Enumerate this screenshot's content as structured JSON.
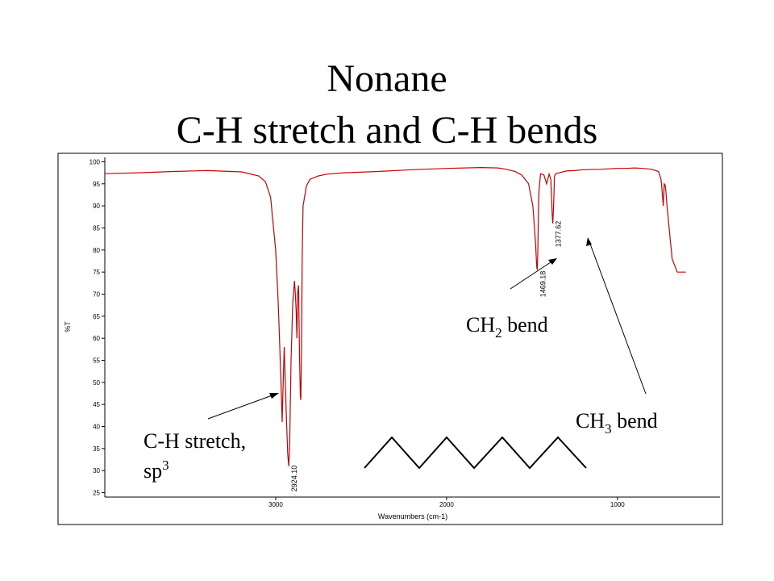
{
  "slide": {
    "title_line1": "Nonane",
    "title_line2": "C-H stretch and C-H bends"
  },
  "chart_data": {
    "type": "line",
    "title": "",
    "xlabel": "Wavenumbers (cm-1)",
    "ylabel": "%T",
    "xlim": [
      4000,
      400
    ],
    "ylim": [
      24,
      101
    ],
    "x_reversed": true,
    "grid": false,
    "x_ticks": [
      3000,
      2000,
      1000
    ],
    "y_ticks": [
      100,
      95,
      90,
      85,
      80,
      75,
      70,
      65,
      60,
      55,
      50,
      45,
      40,
      35,
      30,
      25
    ],
    "line_color": "#cc0000",
    "series": [
      {
        "x": [
          4000,
          3800,
          3600,
          3400,
          3200,
          3100,
          3060,
          3030,
          3000,
          2985,
          2975,
          2965,
          2962,
          2958,
          2950,
          2940,
          2930,
          2924,
          2918,
          2910,
          2900,
          2890,
          2885,
          2880,
          2876,
          2872,
          2866,
          2860,
          2856,
          2853,
          2850,
          2845,
          2840,
          2820,
          2800,
          2750,
          2700,
          2600,
          2400,
          2200,
          2000,
          1800,
          1700,
          1650,
          1600,
          1560,
          1520,
          1495,
          1480,
          1472,
          1469,
          1466,
          1460,
          1450,
          1430,
          1415,
          1400,
          1390,
          1382,
          1378,
          1374,
          1368,
          1360,
          1330,
          1300,
          1250,
          1200,
          1100,
          1050,
          1000,
          950,
          900,
          850,
          800,
          760,
          745,
          738,
          732,
          726,
          722,
          718,
          710,
          700,
          690,
          680,
          650,
          620,
          600
        ],
        "y": [
          97.3,
          97.5,
          97.8,
          98.0,
          97.7,
          96.8,
          95.5,
          92.0,
          80.0,
          68.0,
          57.0,
          45.0,
          41.0,
          47.0,
          58.0,
          45.0,
          34.0,
          31.0,
          36.0,
          55.0,
          68.0,
          73.0,
          70.0,
          66.0,
          60.0,
          70.0,
          72.0,
          55.0,
          47.0,
          46.0,
          54.0,
          78.0,
          90.0,
          94.5,
          96.0,
          96.8,
          97.2,
          97.5,
          97.8,
          98.2,
          98.5,
          98.7,
          98.6,
          98.3,
          97.8,
          97.0,
          95.0,
          90.0,
          82.0,
          76.0,
          75.5,
          80.0,
          93.0,
          97.3,
          97.0,
          95.0,
          97.2,
          96.0,
          88.0,
          86.0,
          90.0,
          96.8,
          97.3,
          97.6,
          97.9,
          98.0,
          98.2,
          98.3,
          98.4,
          98.5,
          98.5,
          98.6,
          98.5,
          98.3,
          97.8,
          96.0,
          93.0,
          90.0,
          95.0,
          94.8,
          94.0,
          90.0,
          86.0,
          82.0,
          78.0,
          75.0,
          75.0,
          75.0
        ]
      }
    ],
    "peak_labels": [
      {
        "x": 2924,
        "text": "2924.10"
      },
      {
        "x": 1469,
        "text": "1469.18"
      },
      {
        "x": 1378,
        "text": "1377.62"
      }
    ],
    "annotations": [
      {
        "text": "C-H stretch,",
        "text2": "sp",
        "sup": "3"
      },
      {
        "text": "CH",
        "sub": "2",
        "text2": " bend"
      },
      {
        "text": "CH",
        "sub": "3",
        "text2": " bend"
      }
    ]
  }
}
